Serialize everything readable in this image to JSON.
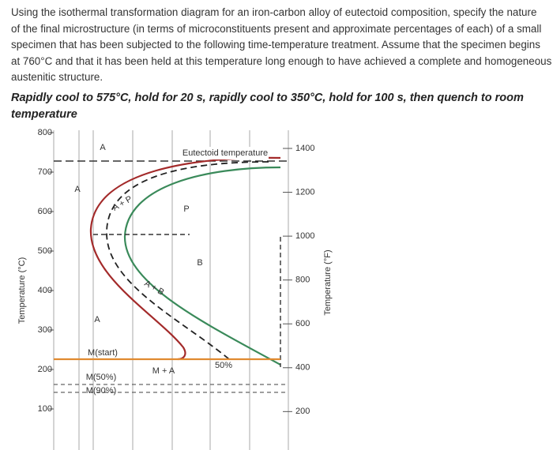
{
  "question": {
    "lines": [
      "Using the isothermal transformation diagram for an iron-carbon alloy of eutectoid composition, specify the nature",
      "of the final microstructure (in terms of microconstituents present and approximate percentages of each) of a small",
      "specimen that has been subjected to the following time-temperature treatment. Assume that the specimen begins",
      "at 760°C and that it has been held at this temperature long enough to have achieved a complete and homogeneous",
      "austenitic structure."
    ]
  },
  "treatment": {
    "lines": [
      "Rapidly cool to 575°C, hold for 20 s, rapidly cool to 350°C, hold for 100 s, then quench to room",
      "temperature"
    ]
  },
  "diagram": {
    "y_label_left": "Temperature (°C)",
    "y_label_right": "Temperature (°F)",
    "celsius_ticks": [
      800,
      700,
      600,
      500,
      400,
      300,
      200,
      100
    ],
    "fahrenheit_ticks": [
      1400,
      1200,
      1000,
      800,
      600,
      400,
      200
    ],
    "labels": [
      "A",
      "Eutectoid temperature",
      "A",
      "A + P",
      "P",
      "A + B",
      "B",
      "A",
      "M(start)",
      "M + A",
      "50%",
      "M(50%)",
      "M(90%)"
    ]
  }
}
